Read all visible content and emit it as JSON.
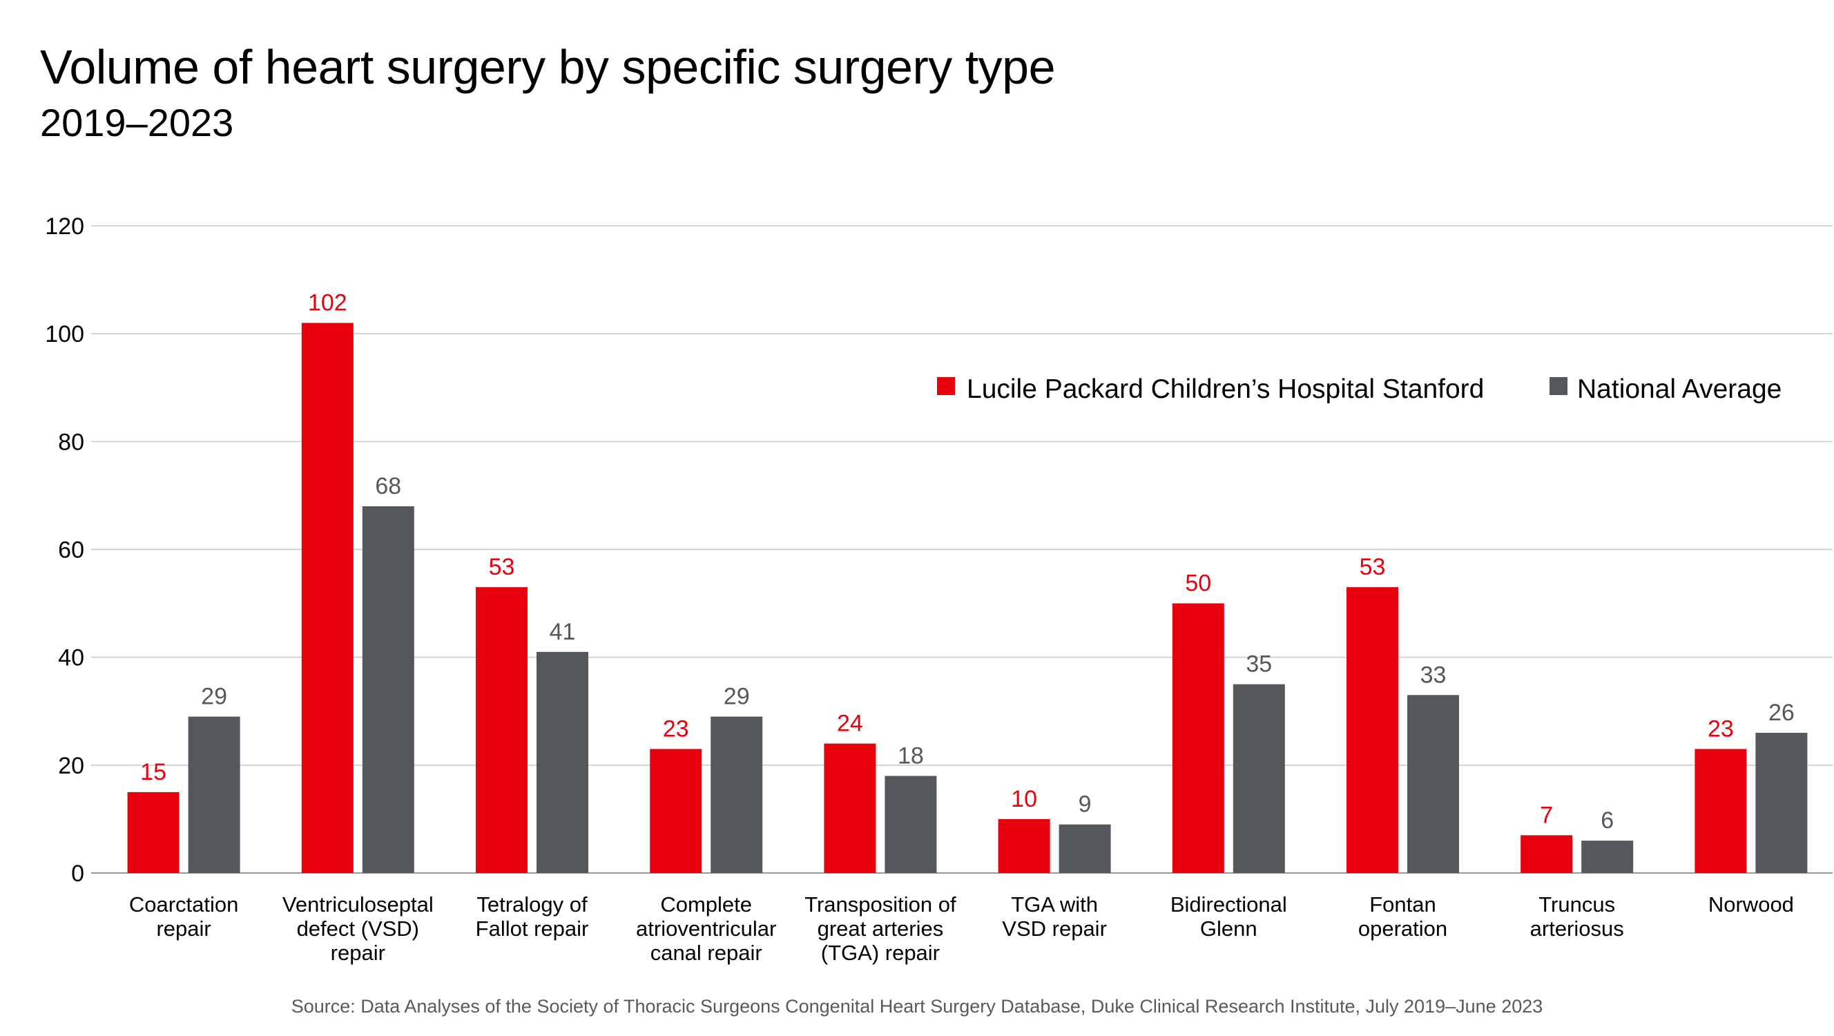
{
  "header": {
    "title": "Volume of heart surgery by specific surgery type",
    "subtitle": "2019–2023"
  },
  "source": "Source: Data Analyses of the Society of Thoracic Surgeons Congenital Heart Surgery Database, Duke Clinical Research Institute, July 2019–June 2023",
  "colors": {
    "primary": "#e8000d",
    "secondary": "#54575b",
    "grid": "#c8c8c8"
  },
  "chart_data": {
    "type": "bar",
    "title": "Volume of heart surgery by specific surgery type",
    "subtitle": "2019–2023",
    "categories": [
      [
        "Coarctation",
        "repair"
      ],
      [
        "Ventriculoseptal",
        "defect (VSD)",
        "repair"
      ],
      [
        "Tetralogy of",
        "Fallot repair"
      ],
      [
        "Complete",
        "atrioventricular",
        "canal repair"
      ],
      [
        "Transposition of",
        "great arteries",
        "(TGA) repair"
      ],
      [
        "TGA with",
        "VSD repair"
      ],
      [
        "Bidirectional",
        "Glenn"
      ],
      [
        "Fontan",
        "operation"
      ],
      [
        "Truncus",
        "arteriosus"
      ],
      [
        "Norwood"
      ]
    ],
    "series": [
      {
        "name": "Lucile Packard Children’s Hospital Stanford",
        "color": "#e8000d",
        "label_color": "#e8000d",
        "values": [
          15,
          102,
          53,
          23,
          24,
          10,
          50,
          53,
          7,
          23
        ]
      },
      {
        "name": "National Average",
        "color": "#54575b",
        "label_color": "#54575b",
        "values": [
          29,
          68,
          41,
          29,
          18,
          9,
          35,
          33,
          6,
          26
        ]
      }
    ],
    "ylim": [
      0,
      120
    ],
    "yticks": [
      0,
      20,
      40,
      60,
      80,
      100,
      120
    ],
    "grid": true,
    "legend_position": "top-right",
    "data_labels": true
  }
}
